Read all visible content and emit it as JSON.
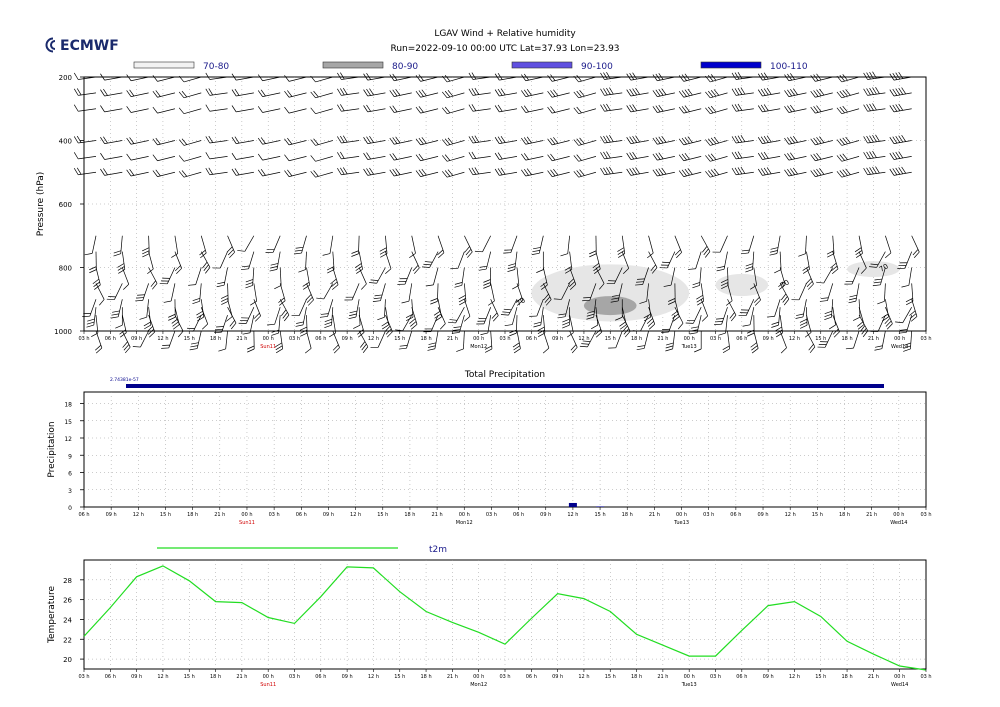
{
  "brand": {
    "logo_text": "ECMWF",
    "color": "#1a2a6c"
  },
  "header": {
    "title": "LGAV Wind + Relative humidity",
    "subtitle": "Run=2022-09-10 00:00 UTC Lat=37.93 Lon=23.93"
  },
  "time_axis": {
    "hour_labels": [
      "03 h",
      "06 h",
      "09 h",
      "12 h",
      "15 h",
      "18 h",
      "21 h",
      "00 h",
      "03 h",
      "06 h",
      "09 h",
      "12 h",
      "15 h",
      "18 h",
      "21 h",
      "00 h",
      "03 h",
      "06 h",
      "09 h",
      "12 h",
      "15 h",
      "18 h",
      "21 h",
      "00 h",
      "03 h",
      "06 h",
      "09 h",
      "12 h",
      "15 h",
      "18 h",
      "21 h",
      "00 h",
      "03 h"
    ],
    "day_labels": [
      {
        "text": "Sun11",
        "color": "#d00000",
        "index": 7
      },
      {
        "text": "Mon12",
        "color": "#000000",
        "index": 15
      },
      {
        "text": "Tue13",
        "color": "#000000",
        "index": 23
      },
      {
        "text": "Wed14",
        "color": "#000000",
        "index": 31
      }
    ]
  },
  "chart_data": [
    {
      "type": "heatmap",
      "title": "LGAV Wind + Relative humidity",
      "ylabel": "Pressure (hPa)",
      "yticks": [
        200,
        400,
        600,
        800,
        1000
      ],
      "ylim": [
        1000,
        200
      ],
      "grid": true,
      "legend": {
        "placement": "top",
        "entries": [
          {
            "label": "70-80",
            "color": "#f2f2f2"
          },
          {
            "label": "80-90",
            "color": "#a6a6a6"
          },
          {
            "label": "90-100",
            "color": "#6050e0"
          },
          {
            "label": "100-110",
            "color": "#0000cc"
          }
        ]
      },
      "contour_label": "70",
      "wind_levels_hpa": [
        200,
        250,
        300,
        400,
        450,
        500,
        700,
        750,
        800,
        850,
        900,
        925,
        950,
        1000
      ],
      "humidity_regions": [
        {
          "range": "70-80",
          "time_hours_from_start": [
            51,
            69
          ],
          "pressure_hpa": [
            790,
            970
          ]
        },
        {
          "range": "80-90",
          "time_hours_from_start": [
            57,
            63
          ],
          "pressure_hpa": [
            890,
            950
          ]
        },
        {
          "range": "70-80",
          "time_hours_from_start": [
            72,
            78
          ],
          "pressure_hpa": [
            820,
            890
          ]
        },
        {
          "range": "70-80",
          "time_hours_from_start": [
            87,
            93
          ],
          "pressure_hpa": [
            780,
            830
          ]
        }
      ]
    },
    {
      "type": "bar",
      "title": "Total Precipitation",
      "ylabel": "Precipitation",
      "yticks": [
        0,
        3,
        6,
        9,
        12,
        15,
        18
      ],
      "ylim": [
        0,
        20
      ],
      "grid": true,
      "legend_label": "2.74381e-57",
      "legend_color": "#00008b",
      "x": [
        "06 h",
        "09 h",
        "12 h",
        "15 h",
        "18 h",
        "21 h",
        "00 h",
        "03 h",
        "06 h",
        "09 h",
        "12 h",
        "15 h",
        "18 h",
        "21 h",
        "00 h",
        "03 h",
        "06 h",
        "09 h",
        "12 h",
        "15 h",
        "18 h",
        "21 h",
        "00 h",
        "03 h",
        "06 h",
        "09 h",
        "12 h",
        "15 h",
        "18 h",
        "21 h",
        "00 h",
        "03 h"
      ],
      "values": [
        0,
        0,
        0,
        0,
        0,
        0,
        0,
        0,
        0,
        0,
        0,
        0,
        0,
        0,
        0,
        0,
        0,
        0,
        0.7,
        0.1,
        0,
        0,
        0,
        0,
        0,
        0,
        0,
        0,
        0,
        0,
        0,
        0
      ]
    },
    {
      "type": "line",
      "title": "t2m",
      "ylabel": "Temperature",
      "yticks": [
        20,
        22,
        24,
        26,
        28
      ],
      "ylim": [
        19,
        30
      ],
      "grid": true,
      "series": [
        {
          "name": "t2m",
          "color": "#22dd22",
          "values": [
            22.3,
            25.2,
            28.3,
            29.4,
            27.9,
            25.8,
            25.7,
            24.2,
            23.6,
            26.3,
            29.3,
            29.2,
            26.8,
            24.8,
            23.7,
            22.7,
            21.5,
            24.1,
            26.6,
            26.1,
            24.8,
            22.5,
            21.4,
            20.3,
            20.3,
            22.9,
            25.4,
            25.8,
            24.3,
            21.8,
            20.5,
            19.3,
            18.9
          ]
        }
      ]
    }
  ]
}
